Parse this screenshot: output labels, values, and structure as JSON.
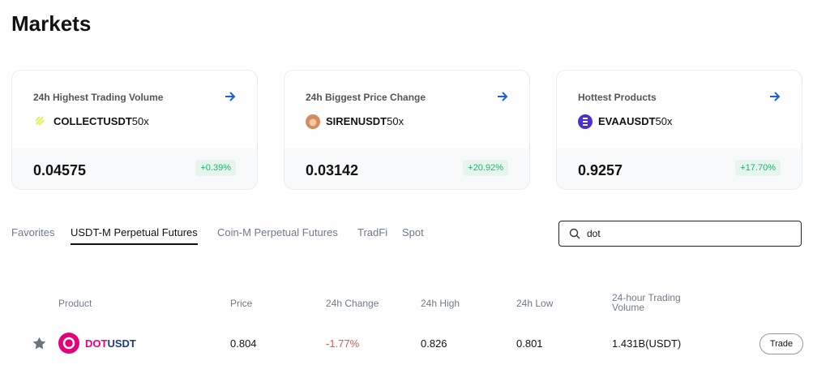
{
  "header": {
    "title": "Markets"
  },
  "cards": [
    {
      "title": "24h Highest Trading Volume",
      "symbol": "COLLECTUSDT",
      "leverage": "50x",
      "price": "0.04575",
      "change": "+0.39%"
    },
    {
      "title": "24h Biggest Price Change",
      "symbol": "SIRENUSDT",
      "leverage": "50x",
      "price": "0.03142",
      "change": "+20.92%"
    },
    {
      "title": "Hottest Products",
      "symbol": "EVAAUSDT",
      "leverage": "50x",
      "price": "0.9257",
      "change": "+17.70%"
    }
  ],
  "tabs": [
    "Favorites",
    "USDT-M Perpetual Futures",
    "Coin-M Perpetual Futures",
    "TradFi",
    "Spot"
  ],
  "search": {
    "value": "dot"
  },
  "table": {
    "headers": [
      "Product",
      "Price",
      "24h Change",
      "24h High",
      "24h Low",
      "24-hour Trading Volume"
    ],
    "rows": [
      {
        "base": "DOT",
        "quote": "USDT",
        "price": "0.804",
        "change": "-1.77%",
        "high": "0.826",
        "low": "0.801",
        "volume": "1.431B(USDT)",
        "action": "Trade"
      }
    ]
  }
}
